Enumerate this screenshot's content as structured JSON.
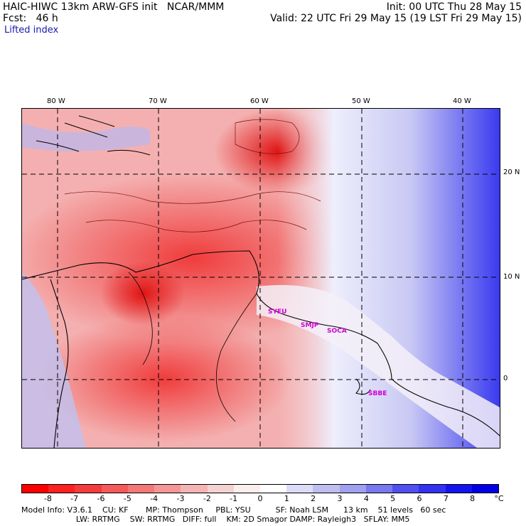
{
  "header": {
    "model_line": "HAIC-HIWC 13km ARW-GFS init   NCAR/MMM",
    "init_line": "Init: 00 UTC Thu 28 May 15",
    "fcst_line": "Fcst:   46 h",
    "valid_line": "Valid: 22 UTC Fri 29 May 15 (19 LST Fri 29 May 15)",
    "field_name": "Lifted index"
  },
  "map": {
    "lon_labels": [
      "80 W",
      "70 W",
      "60 W",
      "50 W",
      "40 W"
    ],
    "lat_labels": [
      "20 N",
      "10 N",
      "0"
    ],
    "stations": [
      "SYEU",
      "SMJP",
      "SOCA",
      "SBBE"
    ]
  },
  "colorbar": {
    "labels": [
      "-8",
      "-7",
      "-6",
      "-5",
      "-4",
      "-3",
      "-2",
      "-1",
      "0",
      "1",
      "2",
      "3",
      "4",
      "5",
      "6",
      "7",
      "8"
    ],
    "unit": "°C",
    "colors": [
      "#ff0000",
      "#ff2020",
      "#f43c3c",
      "#f45a5a",
      "#f47878",
      "#f49696",
      "#f4b4b4",
      "#f4d2d2",
      "#fdeeee",
      "#ffffff",
      "#dcdcf8",
      "#bebef0",
      "#a0a0f0",
      "#7878f0",
      "#5050f0",
      "#3232f0",
      "#1414f0",
      "#0000e6"
    ]
  },
  "footer": {
    "line1": "Model Info: V3.6.1    CU: KF       MP: Thompson     PBL: YSU          SF: Noah LSM      13 km    51 levels   60 sec",
    "line2": "                      LW: RRTMG    SW: RRTMG   DIFF: full    KM: 2D Smagor DAMP: Rayleigh3   SFLAY: MM5"
  }
}
